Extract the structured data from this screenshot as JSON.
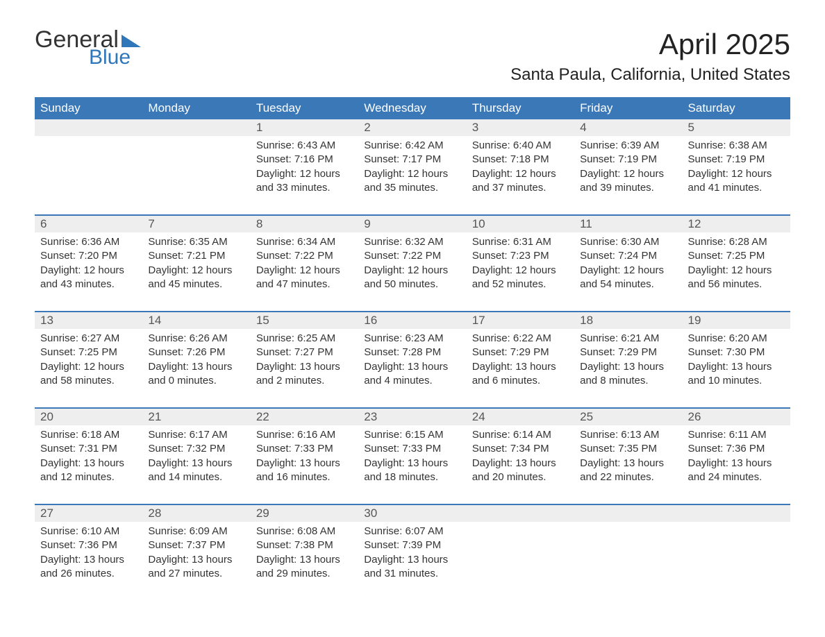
{
  "logo": {
    "text_general": "General",
    "text_blue": "Blue",
    "flag_color": "#2f76bb"
  },
  "header": {
    "month_title": "April 2025",
    "location": "Santa Paula, California, United States"
  },
  "colors": {
    "header_bg": "#3b78b8",
    "header_text": "#ffffff",
    "daynum_bg": "#eeeeee",
    "body_text": "#333333",
    "accent_blue": "#2f76bb"
  },
  "day_names": [
    "Sunday",
    "Monday",
    "Tuesday",
    "Wednesday",
    "Thursday",
    "Friday",
    "Saturday"
  ],
  "weeks": [
    [
      null,
      null,
      {
        "n": "1",
        "sunrise": "Sunrise: 6:43 AM",
        "sunset": "Sunset: 7:16 PM",
        "daylight": "Daylight: 12 hours and 33 minutes."
      },
      {
        "n": "2",
        "sunrise": "Sunrise: 6:42 AM",
        "sunset": "Sunset: 7:17 PM",
        "daylight": "Daylight: 12 hours and 35 minutes."
      },
      {
        "n": "3",
        "sunrise": "Sunrise: 6:40 AM",
        "sunset": "Sunset: 7:18 PM",
        "daylight": "Daylight: 12 hours and 37 minutes."
      },
      {
        "n": "4",
        "sunrise": "Sunrise: 6:39 AM",
        "sunset": "Sunset: 7:19 PM",
        "daylight": "Daylight: 12 hours and 39 minutes."
      },
      {
        "n": "5",
        "sunrise": "Sunrise: 6:38 AM",
        "sunset": "Sunset: 7:19 PM",
        "daylight": "Daylight: 12 hours and 41 minutes."
      }
    ],
    [
      {
        "n": "6",
        "sunrise": "Sunrise: 6:36 AM",
        "sunset": "Sunset: 7:20 PM",
        "daylight": "Daylight: 12 hours and 43 minutes."
      },
      {
        "n": "7",
        "sunrise": "Sunrise: 6:35 AM",
        "sunset": "Sunset: 7:21 PM",
        "daylight": "Daylight: 12 hours and 45 minutes."
      },
      {
        "n": "8",
        "sunrise": "Sunrise: 6:34 AM",
        "sunset": "Sunset: 7:22 PM",
        "daylight": "Daylight: 12 hours and 47 minutes."
      },
      {
        "n": "9",
        "sunrise": "Sunrise: 6:32 AM",
        "sunset": "Sunset: 7:22 PM",
        "daylight": "Daylight: 12 hours and 50 minutes."
      },
      {
        "n": "10",
        "sunrise": "Sunrise: 6:31 AM",
        "sunset": "Sunset: 7:23 PM",
        "daylight": "Daylight: 12 hours and 52 minutes."
      },
      {
        "n": "11",
        "sunrise": "Sunrise: 6:30 AM",
        "sunset": "Sunset: 7:24 PM",
        "daylight": "Daylight: 12 hours and 54 minutes."
      },
      {
        "n": "12",
        "sunrise": "Sunrise: 6:28 AM",
        "sunset": "Sunset: 7:25 PM",
        "daylight": "Daylight: 12 hours and 56 minutes."
      }
    ],
    [
      {
        "n": "13",
        "sunrise": "Sunrise: 6:27 AM",
        "sunset": "Sunset: 7:25 PM",
        "daylight": "Daylight: 12 hours and 58 minutes."
      },
      {
        "n": "14",
        "sunrise": "Sunrise: 6:26 AM",
        "sunset": "Sunset: 7:26 PM",
        "daylight": "Daylight: 13 hours and 0 minutes."
      },
      {
        "n": "15",
        "sunrise": "Sunrise: 6:25 AM",
        "sunset": "Sunset: 7:27 PM",
        "daylight": "Daylight: 13 hours and 2 minutes."
      },
      {
        "n": "16",
        "sunrise": "Sunrise: 6:23 AM",
        "sunset": "Sunset: 7:28 PM",
        "daylight": "Daylight: 13 hours and 4 minutes."
      },
      {
        "n": "17",
        "sunrise": "Sunrise: 6:22 AM",
        "sunset": "Sunset: 7:29 PM",
        "daylight": "Daylight: 13 hours and 6 minutes."
      },
      {
        "n": "18",
        "sunrise": "Sunrise: 6:21 AM",
        "sunset": "Sunset: 7:29 PM",
        "daylight": "Daylight: 13 hours and 8 minutes."
      },
      {
        "n": "19",
        "sunrise": "Sunrise: 6:20 AM",
        "sunset": "Sunset: 7:30 PM",
        "daylight": "Daylight: 13 hours and 10 minutes."
      }
    ],
    [
      {
        "n": "20",
        "sunrise": "Sunrise: 6:18 AM",
        "sunset": "Sunset: 7:31 PM",
        "daylight": "Daylight: 13 hours and 12 minutes."
      },
      {
        "n": "21",
        "sunrise": "Sunrise: 6:17 AM",
        "sunset": "Sunset: 7:32 PM",
        "daylight": "Daylight: 13 hours and 14 minutes."
      },
      {
        "n": "22",
        "sunrise": "Sunrise: 6:16 AM",
        "sunset": "Sunset: 7:33 PM",
        "daylight": "Daylight: 13 hours and 16 minutes."
      },
      {
        "n": "23",
        "sunrise": "Sunrise: 6:15 AM",
        "sunset": "Sunset: 7:33 PM",
        "daylight": "Daylight: 13 hours and 18 minutes."
      },
      {
        "n": "24",
        "sunrise": "Sunrise: 6:14 AM",
        "sunset": "Sunset: 7:34 PM",
        "daylight": "Daylight: 13 hours and 20 minutes."
      },
      {
        "n": "25",
        "sunrise": "Sunrise: 6:13 AM",
        "sunset": "Sunset: 7:35 PM",
        "daylight": "Daylight: 13 hours and 22 minutes."
      },
      {
        "n": "26",
        "sunrise": "Sunrise: 6:11 AM",
        "sunset": "Sunset: 7:36 PM",
        "daylight": "Daylight: 13 hours and 24 minutes."
      }
    ],
    [
      {
        "n": "27",
        "sunrise": "Sunrise: 6:10 AM",
        "sunset": "Sunset: 7:36 PM",
        "daylight": "Daylight: 13 hours and 26 minutes."
      },
      {
        "n": "28",
        "sunrise": "Sunrise: 6:09 AM",
        "sunset": "Sunset: 7:37 PM",
        "daylight": "Daylight: 13 hours and 27 minutes."
      },
      {
        "n": "29",
        "sunrise": "Sunrise: 6:08 AM",
        "sunset": "Sunset: 7:38 PM",
        "daylight": "Daylight: 13 hours and 29 minutes."
      },
      {
        "n": "30",
        "sunrise": "Sunrise: 6:07 AM",
        "sunset": "Sunset: 7:39 PM",
        "daylight": "Daylight: 13 hours and 31 minutes."
      },
      null,
      null,
      null
    ]
  ]
}
